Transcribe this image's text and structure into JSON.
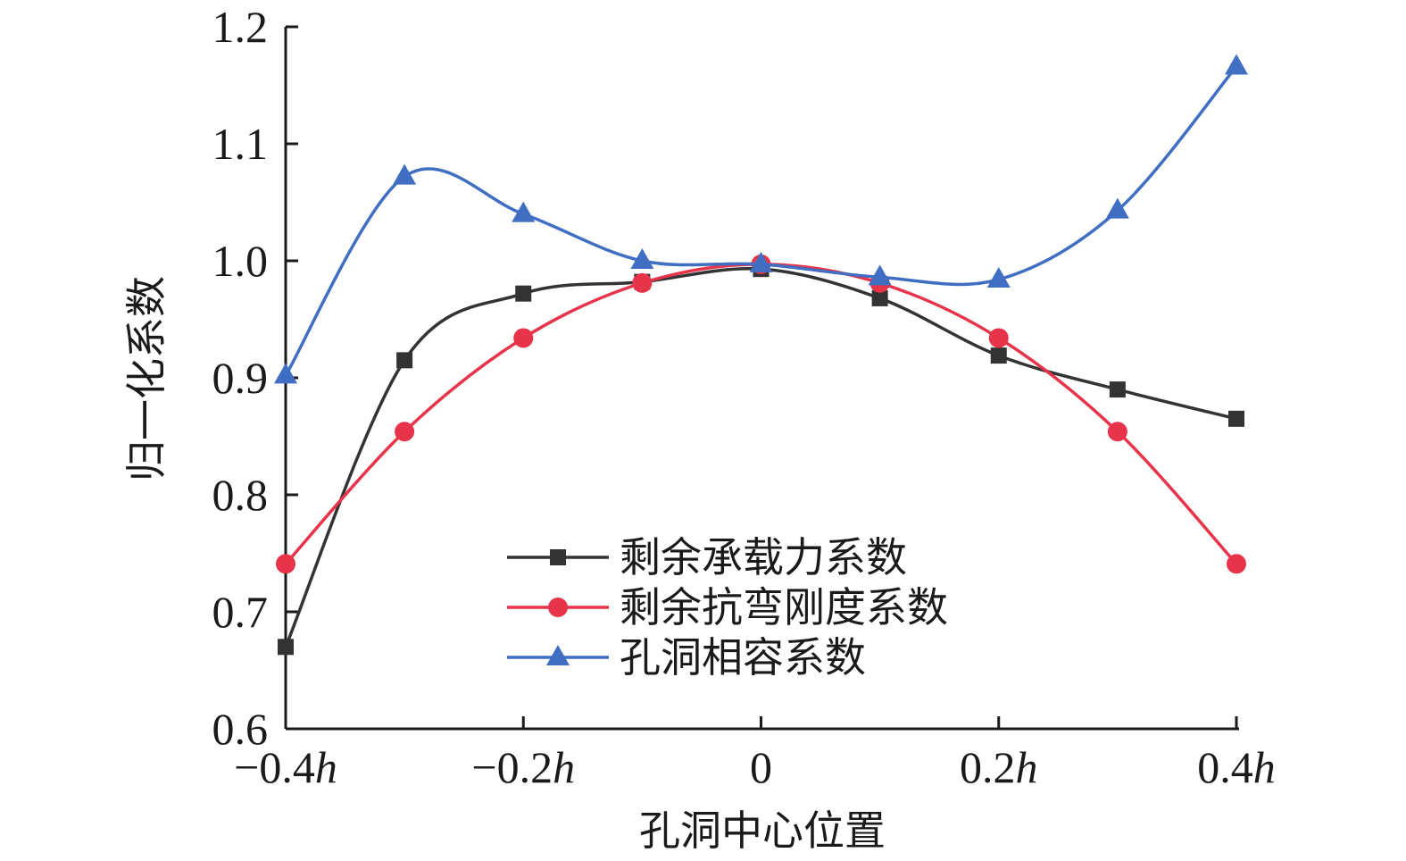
{
  "chart_data": {
    "type": "line",
    "xlabel": "孔洞中心位置",
    "ylabel": "归一化系数",
    "x": [
      -0.4,
      -0.3,
      -0.2,
      -0.1,
      0,
      0.1,
      0.2,
      0.3,
      0.4
    ],
    "xlim": [
      -0.4,
      0.4
    ],
    "ylim": [
      0.6,
      1.2
    ],
    "x_ticks": [
      {
        "value": -0.4,
        "num": "−0.4",
        "unit": "h"
      },
      {
        "value": -0.2,
        "num": "−0.2",
        "unit": "h"
      },
      {
        "value": 0,
        "num": "0",
        "unit": ""
      },
      {
        "value": 0.2,
        "num": "0.2",
        "unit": "h"
      },
      {
        "value": 0.4,
        "num": "0.4",
        "unit": "h"
      }
    ],
    "y_ticks": [
      {
        "value": 0.6,
        "label": "0.6"
      },
      {
        "value": 0.7,
        "label": "0.7"
      },
      {
        "value": 0.8,
        "label": "0.8"
      },
      {
        "value": 0.9,
        "label": "0.9"
      },
      {
        "value": 1.0,
        "label": "1.0"
      },
      {
        "value": 1.1,
        "label": "1.1"
      },
      {
        "value": 1.2,
        "label": "1.2"
      }
    ],
    "grid": false,
    "legend_position": "bottom-center",
    "series": [
      {
        "name": "剩余承载力系数",
        "color": "#333333",
        "marker": "square",
        "values": [
          0.67,
          0.915,
          0.972,
          0.982,
          0.993,
          0.968,
          0.919,
          0.89,
          0.865
        ]
      },
      {
        "name": "剩余抗弯刚度系数",
        "color": "#e8344a",
        "marker": "circle",
        "values": [
          0.741,
          0.854,
          0.934,
          0.981,
          0.997,
          0.981,
          0.934,
          0.854,
          0.741
        ]
      },
      {
        "name": "孔洞相容系数",
        "color": "#3f6ec3",
        "marker": "triangle",
        "values": [
          0.902,
          1.072,
          1.04,
          1.0,
          0.997,
          0.986,
          0.984,
          1.043,
          1.166
        ]
      }
    ]
  }
}
